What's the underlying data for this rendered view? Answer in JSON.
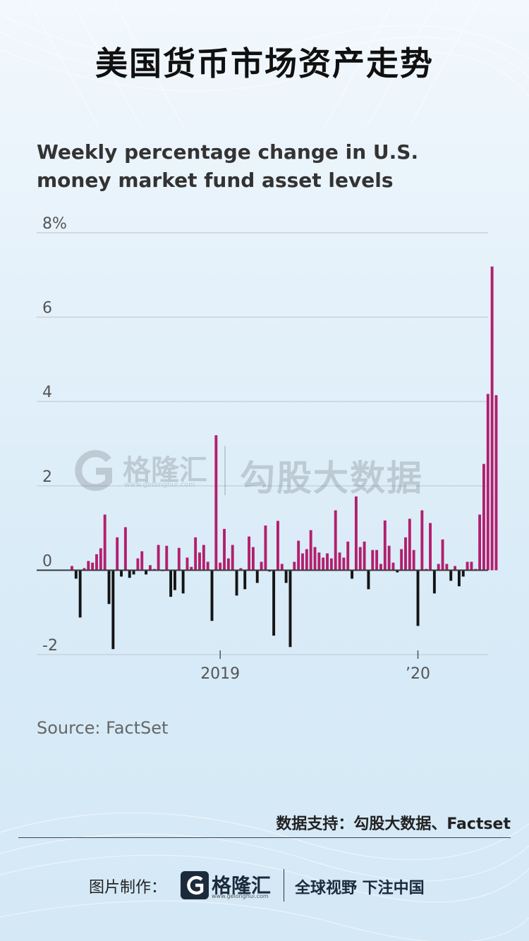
{
  "page": {
    "main_title": "美国货币市场资产走势",
    "data_support": "数据支持：勾股大数据、Factset",
    "made_by_label": "图片制作：",
    "brand_name": "格隆汇",
    "brand_url": "www.gelonghui.com",
    "slogan": "全球视野 下注中国",
    "watermark_text": "勾股大数据"
  },
  "colors": {
    "positive": "#b21f6e",
    "negative": "#141414",
    "grid": "#c6d3dd",
    "axis_text": "#555555",
    "title": "#101010"
  },
  "chart_data": {
    "type": "bar",
    "title": "Weekly percentage change in U.S. money market fund asset levels",
    "source": "Source: FactSet",
    "ylim": [
      -2,
      8
    ],
    "yticks": [
      {
        "value": 8,
        "label": "8%"
      },
      {
        "value": 6,
        "label": "6"
      },
      {
        "value": 4,
        "label": "4"
      },
      {
        "value": 2,
        "label": "2"
      },
      {
        "value": 0,
        "label": "0"
      },
      {
        "value": -2,
        "label": "-2"
      }
    ],
    "xticks": [
      {
        "index": 36,
        "label": "2019"
      },
      {
        "index": 84,
        "label": "’20"
      }
    ],
    "grid": true,
    "legend": "none",
    "values": [
      0.1,
      -0.2,
      -1.12,
      0.05,
      0.22,
      0.18,
      0.38,
      0.52,
      1.32,
      -0.8,
      -1.87,
      0.78,
      -0.15,
      1.02,
      -0.18,
      -0.1,
      0.28,
      0.45,
      -0.1,
      0.12,
      0.03,
      0.6,
      -0.02,
      0.58,
      -0.63,
      -0.47,
      0.53,
      -0.55,
      0.3,
      0.08,
      0.78,
      0.42,
      0.6,
      0.2,
      -1.2,
      3.2,
      0.18,
      0.98,
      0.28,
      0.6,
      -0.6,
      0.05,
      -0.45,
      0.8,
      0.55,
      -0.3,
      0.2,
      1.06,
      -0.03,
      -1.55,
      1.17,
      0.15,
      -0.3,
      -1.82,
      0.2,
      0.7,
      0.4,
      0.5,
      0.95,
      0.55,
      0.42,
      0.3,
      0.4,
      0.28,
      1.42,
      0.42,
      0.3,
      0.68,
      -0.2,
      1.75,
      0.55,
      0.68,
      -0.45,
      0.48,
      0.48,
      0.15,
      1.18,
      0.58,
      0.18,
      -0.05,
      0.5,
      0.78,
      1.22,
      0.48,
      -1.32,
      1.42,
      0.03,
      1.12,
      -0.55,
      0.15,
      0.73,
      0.15,
      -0.25,
      0.1,
      -0.38,
      -0.15,
      0.2,
      0.2,
      0.03,
      1.32,
      2.52,
      4.18,
      7.2,
      4.15
    ]
  }
}
